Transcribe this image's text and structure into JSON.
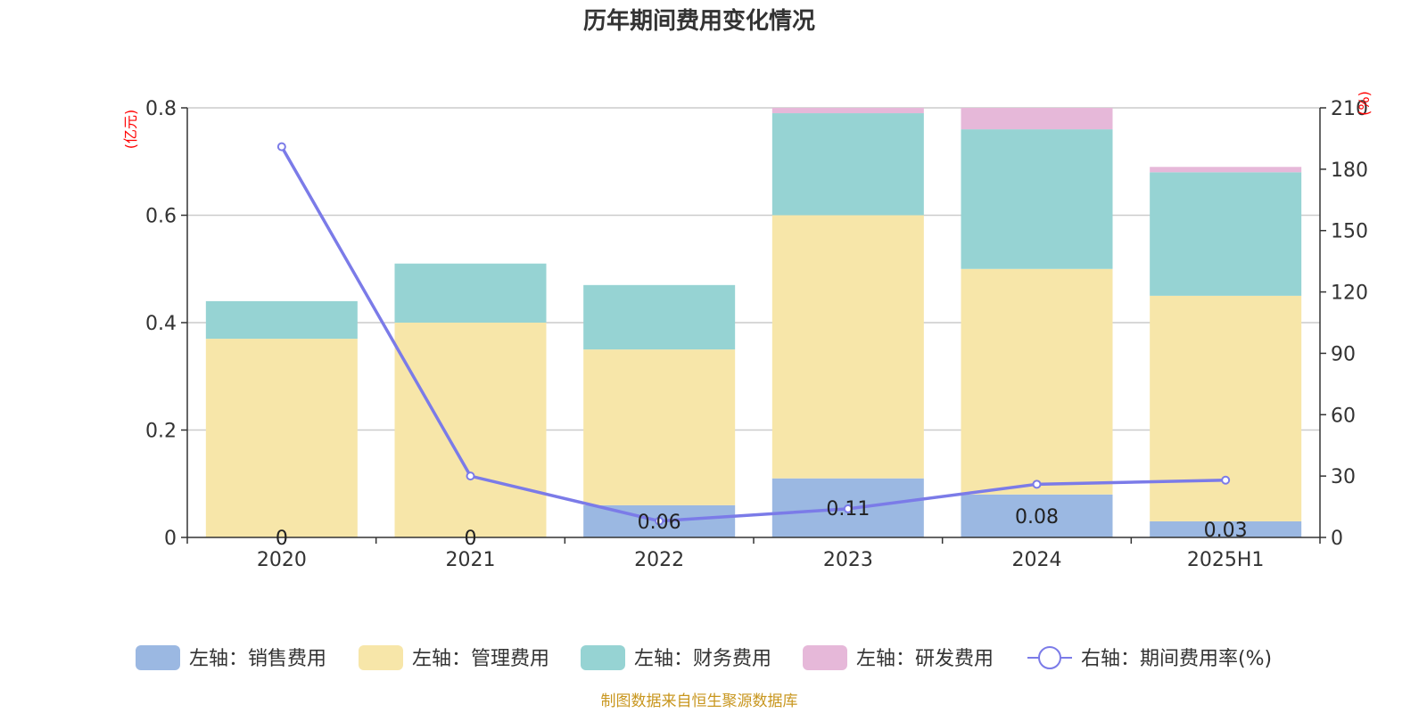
{
  "chart_data": {
    "type": "bar",
    "title": "历年期间费用变化情况",
    "categories": [
      "2020",
      "2021",
      "2022",
      "2023",
      "2024",
      "2025H1"
    ],
    "left_axis": {
      "unit": "(亿元)",
      "ylim": [
        0,
        0.8
      ],
      "ticks": [
        "0",
        "0.2",
        "0.4",
        "0.6",
        "0.8"
      ]
    },
    "right_axis": {
      "unit": "(%)",
      "ylim": [
        0,
        210
      ],
      "ticks": [
        "0",
        "30",
        "60",
        "90",
        "120",
        "150",
        "180",
        "210"
      ]
    },
    "series": [
      {
        "name": "左轴：销售费用",
        "type": "bar",
        "color": "#9bb8e2",
        "values": [
          0,
          0,
          0.06,
          0.11,
          0.08,
          0.03
        ],
        "data_labels": [
          "0",
          "0",
          "0.06",
          "0.11",
          "0.08",
          "0.03"
        ]
      },
      {
        "name": "左轴：管理费用",
        "type": "bar",
        "color": "#f7e6a9",
        "values": [
          0.37,
          0.4,
          0.29,
          0.49,
          0.42,
          0.42
        ]
      },
      {
        "name": "左轴：财务费用",
        "type": "bar",
        "color": "#96d3d3",
        "values": [
          0.07,
          0.11,
          0.12,
          0.19,
          0.26,
          0.23
        ]
      },
      {
        "name": "左轴：研发费用",
        "type": "bar",
        "color": "#e6b8d9",
        "values": [
          0,
          0,
          0,
          0.01,
          0.04,
          0.01
        ]
      },
      {
        "name": "右轴：期间费用率(%)",
        "type": "line",
        "axis": "right",
        "color": "#7b7be8",
        "values": [
          191,
          30,
          8,
          14,
          26,
          28
        ]
      }
    ],
    "grid": true,
    "legend_position": "bottom"
  },
  "source_note": "制图数据来自恒生聚源数据库"
}
